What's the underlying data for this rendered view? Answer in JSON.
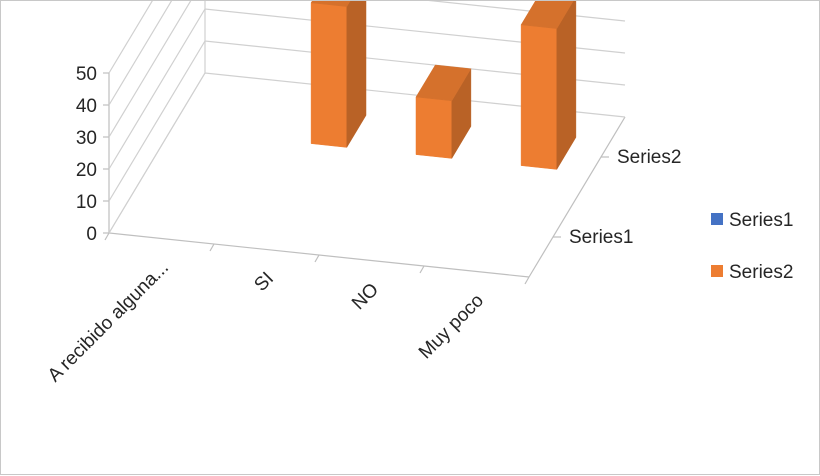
{
  "chart_data": {
    "type": "bar",
    "style": "3d-column",
    "categories": [
      "A recibido alguna...",
      "SI",
      "NO",
      "Muy poco"
    ],
    "series": [
      {
        "name": "Series1",
        "color": "#4472c4",
        "values": [
          0,
          0,
          0,
          0
        ]
      },
      {
        "name": "Series2",
        "color": "#ed7d31",
        "values": [
          null,
          44,
          18,
          44
        ]
      }
    ],
    "depth_labels": [
      "Series2",
      "Series1"
    ],
    "yticks": [
      "0",
      "10",
      "20",
      "30",
      "40",
      "50"
    ],
    "ylim": [
      0,
      50
    ],
    "grid": true,
    "legend": "right",
    "title": "",
    "xlabel": "",
    "ylabel": ""
  }
}
